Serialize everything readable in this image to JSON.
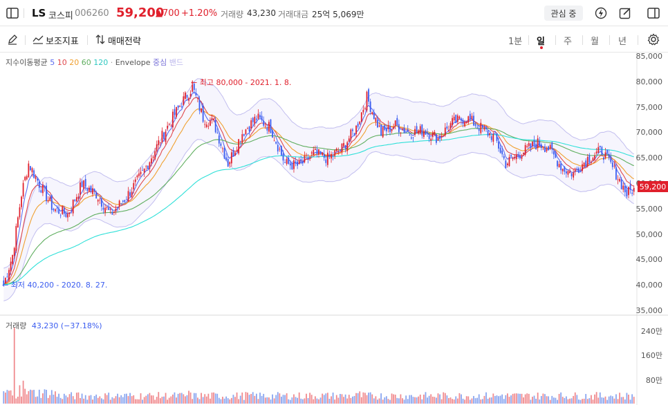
{
  "header": {
    "name": "LS",
    "market": "코스피",
    "code": "006260",
    "price": "59,200",
    "change": "▲700",
    "change_pct": "+1.20%",
    "separator": "·",
    "volume_label": "거래량",
    "volume": "43,230",
    "amount_label": "거래대금",
    "amount": "25억 5,069만",
    "watch_label": "관심 중"
  },
  "toolbar": {
    "indicators_label": "보조지표",
    "strategy_label": "매매전략",
    "periods": [
      "1분",
      "일",
      "주",
      "월",
      "년"
    ],
    "active_period": "일"
  },
  "legend": {
    "ma_label": "지수이동평균",
    "ma_periods": [
      "5",
      "10",
      "20",
      "60",
      "120"
    ],
    "ma_colors": [
      "#5b6cf0",
      "#e0484c",
      "#f0a030",
      "#5fae5f",
      "#2ee0d8"
    ],
    "separator": "·",
    "envelope_label": "Envelope",
    "envelope_mid": "중심",
    "envelope_band": "밴드",
    "envelope_color": "#a9a4e8"
  },
  "annotations": {
    "high": "← 최고 80,000 - 2021. 1. 8.",
    "low": "← 최저 40,200 - 2020. 8. 27."
  },
  "current_price_tag": "59,200",
  "volume_legend": {
    "label": "거래량",
    "value": "43,230 (−37.18%)"
  },
  "colors": {
    "up": "#e0202c",
    "down": "#3a5cf0",
    "vol_up": "#f08a8e",
    "vol_down": "#8aa6f0",
    "accent": "#e0202c"
  },
  "chart_data": {
    "type": "candlestick",
    "price_axis": {
      "ylim": [
        35000,
        85000
      ],
      "ticks": [
        "85,000",
        "80,000",
        "75,000",
        "70,000",
        "65,000",
        "60,000",
        "55,000",
        "50,000",
        "45,000",
        "40,000",
        "35,000"
      ]
    },
    "volume_axis": {
      "ticks": [
        "240만",
        "160만",
        "80만"
      ]
    },
    "anchors": [
      {
        "i": 0,
        "v": 40200
      },
      {
        "i": 5,
        "v": 46000
      },
      {
        "i": 10,
        "v": 58000
      },
      {
        "i": 14,
        "v": 64000
      },
      {
        "i": 20,
        "v": 60000
      },
      {
        "i": 28,
        "v": 55000
      },
      {
        "i": 36,
        "v": 54000
      },
      {
        "i": 44,
        "v": 60000
      },
      {
        "i": 52,
        "v": 58000
      },
      {
        "i": 60,
        "v": 54000
      },
      {
        "i": 68,
        "v": 57000
      },
      {
        "i": 78,
        "v": 62000
      },
      {
        "i": 90,
        "v": 70000
      },
      {
        "i": 100,
        "v": 76000
      },
      {
        "i": 106,
        "v": 79000
      },
      {
        "i": 112,
        "v": 73000
      },
      {
        "i": 118,
        "v": 72000
      },
      {
        "i": 126,
        "v": 64000
      },
      {
        "i": 134,
        "v": 70000
      },
      {
        "i": 142,
        "v": 73000
      },
      {
        "i": 150,
        "v": 71000
      },
      {
        "i": 158,
        "v": 64000
      },
      {
        "i": 166,
        "v": 63500
      },
      {
        "i": 174,
        "v": 66000
      },
      {
        "i": 182,
        "v": 65000
      },
      {
        "i": 190,
        "v": 67000
      },
      {
        "i": 198,
        "v": 71000
      },
      {
        "i": 204,
        "v": 77000
      },
      {
        "i": 212,
        "v": 70000
      },
      {
        "i": 220,
        "v": 71500
      },
      {
        "i": 228,
        "v": 70000
      },
      {
        "i": 236,
        "v": 70500
      },
      {
        "i": 244,
        "v": 69000
      },
      {
        "i": 252,
        "v": 72000
      },
      {
        "i": 260,
        "v": 73000
      },
      {
        "i": 268,
        "v": 71000
      },
      {
        "i": 276,
        "v": 69000
      },
      {
        "i": 282,
        "v": 64000
      },
      {
        "i": 290,
        "v": 66000
      },
      {
        "i": 300,
        "v": 68000
      },
      {
        "i": 306,
        "v": 67000
      },
      {
        "i": 314,
        "v": 63000
      },
      {
        "i": 320,
        "v": 62000
      },
      {
        "i": 328,
        "v": 65000
      },
      {
        "i": 336,
        "v": 66500
      },
      {
        "i": 344,
        "v": 62000
      },
      {
        "i": 350,
        "v": 58000
      },
      {
        "i": 354,
        "v": 59200
      }
    ],
    "n": 355,
    "volume_spikes": [
      {
        "i": 6,
        "v": 2480000
      },
      {
        "i": 3,
        "v": 420000
      },
      {
        "i": 9,
        "v": 600000
      },
      {
        "i": 11,
        "v": 750000
      },
      {
        "i": 16,
        "v": 440000
      },
      {
        "i": 104,
        "v": 420000
      },
      {
        "i": 136,
        "v": 380000
      },
      {
        "i": 200,
        "v": 400000
      },
      {
        "i": 280,
        "v": 300000
      }
    ]
  }
}
